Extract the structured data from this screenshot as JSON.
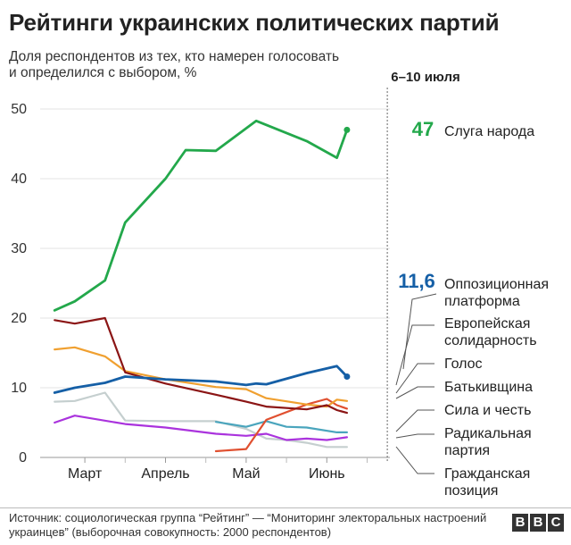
{
  "chart_data": {
    "type": "line",
    "title": "Рейтинги украинских политических партий",
    "subtitle": "Доля респондентов из тех, кто намерен голосовать и определился с выбором, %",
    "period_label": "6–10 июля",
    "ylim": [
      0,
      50
    ],
    "y_ticks": [
      0,
      10,
      20,
      30,
      40,
      50
    ],
    "xlim": [
      0,
      16.5
    ],
    "x_ticks": [
      {
        "label": "Март",
        "x": 1
      },
      {
        "label": "Апрель",
        "x": 5
      },
      {
        "label": "Май",
        "x": 9
      },
      {
        "label": "Июнь",
        "x": 13
      }
    ],
    "marker_x": 16,
    "series": [
      {
        "name": "Слуга народа",
        "color": "#23a84b",
        "highlight": true,
        "final_value": "47",
        "points": [
          [
            -0.5,
            21.1
          ],
          [
            0.5,
            22.4
          ],
          [
            2,
            25.4
          ],
          [
            3,
            33.7
          ],
          [
            5,
            40
          ],
          [
            6,
            44.1
          ],
          [
            7.5,
            44
          ],
          [
            9.5,
            48.3
          ],
          [
            12,
            45.4
          ],
          [
            13.5,
            43
          ],
          [
            14,
            47
          ]
        ]
      },
      {
        "name": "Оппозиционная платформа",
        "color": "#155fa6",
        "highlight": true,
        "final_value": "11,6",
        "points": [
          [
            -0.5,
            9.3
          ],
          [
            0.5,
            10
          ],
          [
            2,
            10.7
          ],
          [
            3,
            11.6
          ],
          [
            5,
            11.2
          ],
          [
            7.5,
            10.9
          ],
          [
            9,
            10.4
          ],
          [
            9.5,
            10.6
          ],
          [
            10,
            10.5
          ],
          [
            12,
            12.1
          ],
          [
            13.5,
            13.1
          ],
          [
            14,
            11.6
          ]
        ]
      },
      {
        "name": "Европейская солидарность",
        "color": "#f0a030",
        "highlight": false,
        "points": [
          [
            -0.5,
            15.5
          ],
          [
            0.5,
            15.8
          ],
          [
            2,
            14.5
          ],
          [
            3,
            12.4
          ],
          [
            5,
            11.2
          ],
          [
            7.5,
            10.1
          ],
          [
            9,
            9.8
          ],
          [
            10,
            8.5
          ],
          [
            12,
            7.6
          ],
          [
            13,
            7.3
          ],
          [
            13.5,
            8.3
          ],
          [
            14,
            8.1
          ]
        ]
      },
      {
        "name": "Голос",
        "color": "#e05030",
        "highlight": false,
        "points": [
          [
            7.5,
            0.9
          ],
          [
            9,
            1.2
          ],
          [
            10,
            5.4
          ],
          [
            12,
            7.6
          ],
          [
            13,
            8.4
          ],
          [
            13.5,
            7.5
          ],
          [
            14,
            7
          ]
        ]
      },
      {
        "name": "Батькивщина",
        "color": "#8b1515",
        "highlight": false,
        "points": [
          [
            -0.5,
            19.7
          ],
          [
            0.5,
            19.2
          ],
          [
            2,
            20
          ],
          [
            3,
            12.2
          ],
          [
            5,
            10.6
          ],
          [
            7.5,
            9
          ],
          [
            9,
            8
          ],
          [
            10,
            7.3
          ],
          [
            12,
            6.9
          ],
          [
            13,
            7.5
          ],
          [
            13.5,
            6.8
          ],
          [
            14,
            6.4
          ]
        ]
      },
      {
        "name": "Сила и честь",
        "color": "#4aa5bd",
        "highlight": false,
        "points": [
          [
            7.5,
            5.1
          ],
          [
            9,
            4.4
          ],
          [
            10,
            5.2
          ],
          [
            11,
            4.4
          ],
          [
            12,
            4.3
          ],
          [
            13.5,
            3.6
          ],
          [
            14,
            3.6
          ]
        ]
      },
      {
        "name": "Радикальная партия",
        "color": "#aa33dd",
        "highlight": false,
        "points": [
          [
            -0.5,
            5
          ],
          [
            0.5,
            6
          ],
          [
            3,
            4.8
          ],
          [
            5,
            4.3
          ],
          [
            7.5,
            3.4
          ],
          [
            9,
            3.1
          ],
          [
            10,
            3.4
          ],
          [
            11,
            2.5
          ],
          [
            12,
            2.7
          ],
          [
            13,
            2.5
          ],
          [
            14,
            2.9
          ]
        ]
      },
      {
        "name": "Гражданская позиция",
        "color": "#c5cfcf",
        "highlight": false,
        "points": [
          [
            -0.5,
            8
          ],
          [
            0.5,
            8.1
          ],
          [
            2,
            9.3
          ],
          [
            3,
            5.3
          ],
          [
            5,
            5.2
          ],
          [
            7.5,
            5.2
          ],
          [
            9,
            4.1
          ],
          [
            10,
            2.7
          ],
          [
            11,
            2.5
          ],
          [
            12,
            2.1
          ],
          [
            13,
            1.5
          ],
          [
            14,
            1.5
          ]
        ]
      }
    ],
    "labels": [
      {
        "text": "Слуга народа",
        "series": 0
      },
      {
        "text": "Оппозиционная платформа",
        "series": 1
      },
      {
        "text": "Европейская солидарность",
        "series": 2
      },
      {
        "text": "Голос",
        "series": 3
      },
      {
        "text": "Батькивщина",
        "series": 4
      },
      {
        "text": "Сила и честь",
        "series": 5
      },
      {
        "text": "Радикальная партия",
        "series": 6
      },
      {
        "text": "Гражданская позиция",
        "series": 7
      }
    ]
  },
  "footer": {
    "source": "Источник: социологическая группа “Рейтинг” — “Мониторинг электоральных настроений украинцев” (выборочная совокупность: 2000 респондентов)",
    "logo": [
      "B",
      "B",
      "C"
    ]
  }
}
